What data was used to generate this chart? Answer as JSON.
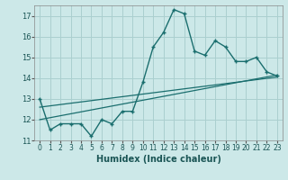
{
  "xlabel": "Humidex (Indice chaleur)",
  "bg_color": "#cce8e8",
  "grid_color": "#aacfcf",
  "line_color": "#1a6e6e",
  "xlim": [
    -0.5,
    23.5
  ],
  "ylim": [
    11.0,
    17.5
  ],
  "yticks": [
    11,
    12,
    13,
    14,
    15,
    16,
    17
  ],
  "xticks": [
    0,
    1,
    2,
    3,
    4,
    5,
    6,
    7,
    8,
    9,
    10,
    11,
    12,
    13,
    14,
    15,
    16,
    17,
    18,
    19,
    20,
    21,
    22,
    23
  ],
  "main_x": [
    0,
    1,
    2,
    3,
    4,
    5,
    6,
    7,
    8,
    9,
    10,
    11,
    12,
    13,
    14,
    15,
    16,
    17,
    18,
    19,
    20,
    21,
    22,
    23
  ],
  "main_y": [
    13.0,
    11.5,
    11.8,
    11.8,
    11.8,
    11.2,
    12.0,
    11.8,
    12.4,
    12.4,
    13.8,
    15.5,
    16.2,
    17.3,
    17.1,
    15.3,
    15.1,
    15.8,
    15.5,
    14.8,
    14.8,
    15.0,
    14.3,
    14.1
  ],
  "line2_x": [
    0,
    23
  ],
  "line2_y": [
    12.0,
    14.15
  ],
  "line3_x": [
    0,
    23
  ],
  "line3_y": [
    12.6,
    14.05
  ]
}
